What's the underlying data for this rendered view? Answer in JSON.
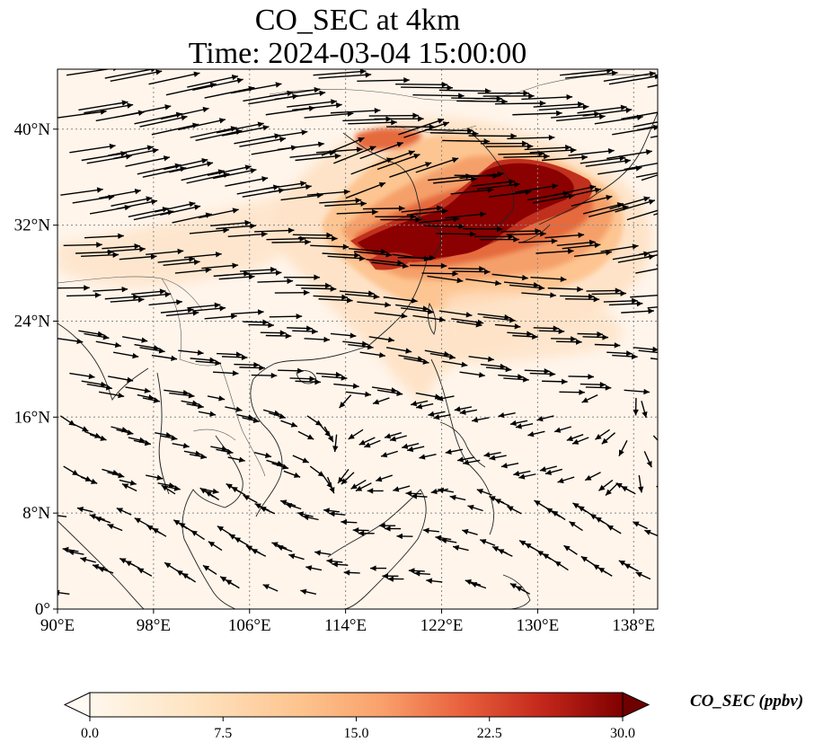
{
  "title": {
    "line1": "CO_SEC at 4km",
    "line2": "Time: 2024-03-04 15:00:00"
  },
  "map": {
    "lon_range": [
      90,
      140
    ],
    "lat_range": [
      0,
      45
    ],
    "lon_ticks": [
      {
        "value": 90,
        "label": "90°E"
      },
      {
        "value": 98,
        "label": "98°E"
      },
      {
        "value": 106,
        "label": "106°E"
      },
      {
        "value": 114,
        "label": "114°E"
      },
      {
        "value": 122,
        "label": "122°E"
      },
      {
        "value": 130,
        "label": "130°E"
      },
      {
        "value": 138,
        "label": "138°E"
      }
    ],
    "lat_ticks": [
      {
        "value": 0,
        "label": "0°"
      },
      {
        "value": 8,
        "label": "8°N"
      },
      {
        "value": 16,
        "label": "16°N"
      },
      {
        "value": 24,
        "label": "24°N"
      },
      {
        "value": 32,
        "label": "32°N"
      },
      {
        "value": 40,
        "label": "40°N"
      }
    ],
    "gridlines": "dotted",
    "colors": {
      "level_0": "#fff5eb",
      "level_1": "#fee3c8",
      "level_2": "#fdc591",
      "level_3": "#f5a06a",
      "level_4": "#e56a3d",
      "level_5": "#c0301d",
      "level_6": "#8b0000",
      "coast": "#222222",
      "arrow": "#000000"
    }
  },
  "colorbar": {
    "label": "CO_SEC (ppbv)",
    "min": 0,
    "max": 30,
    "ticks": [
      "0.0",
      "7.5",
      "15.0",
      "22.5",
      "30.0"
    ],
    "extend": "both",
    "colormap": "OrRd"
  }
}
